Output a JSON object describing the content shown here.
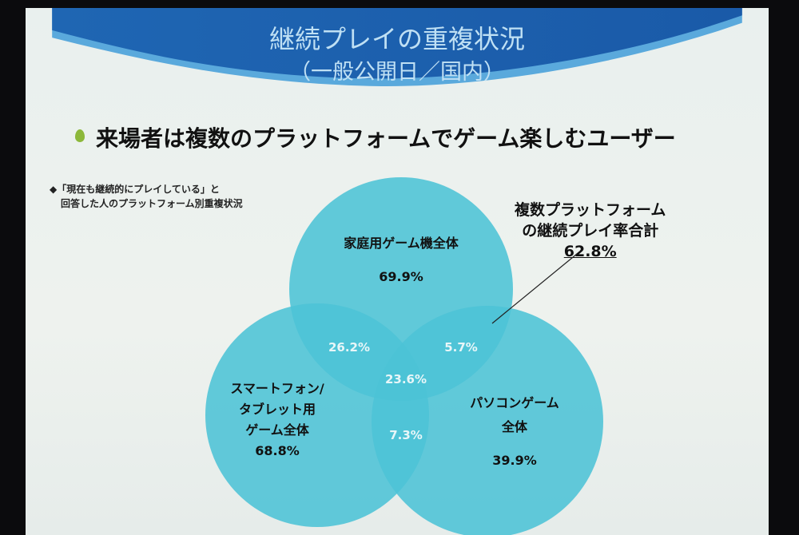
{
  "slide": {
    "title": "継続プレイの重複状況",
    "subtitle": "（一般公開日／国内）",
    "headline": "来場者は複数のプラットフォームでゲーム楽しむユーザー",
    "note_line1": "◆「現在も継続的にプレイしている」と",
    "note_line2": "回答した人のプラットフォーム別重複状況",
    "callout_line1": "複数プラットフォーム",
    "callout_line2": "の継続プレイ率合計",
    "callout_value": "62.8%"
  },
  "venn": {
    "color": "#4cc3d6",
    "sets": [
      {
        "label": "家庭用ゲーム機全体",
        "value": "69.9%"
      },
      {
        "label_lines": [
          "スマートフォン/",
          "タブレット用",
          "ゲーム全体"
        ],
        "value": "68.8%"
      },
      {
        "label_lines": [
          "パソコンゲーム",
          "全体"
        ],
        "value": "39.9%"
      }
    ],
    "overlaps": {
      "console_mobile": "26.2%",
      "console_pc": "5.7%",
      "all_three": "23.6%",
      "mobile_pc": "7.3%"
    }
  }
}
